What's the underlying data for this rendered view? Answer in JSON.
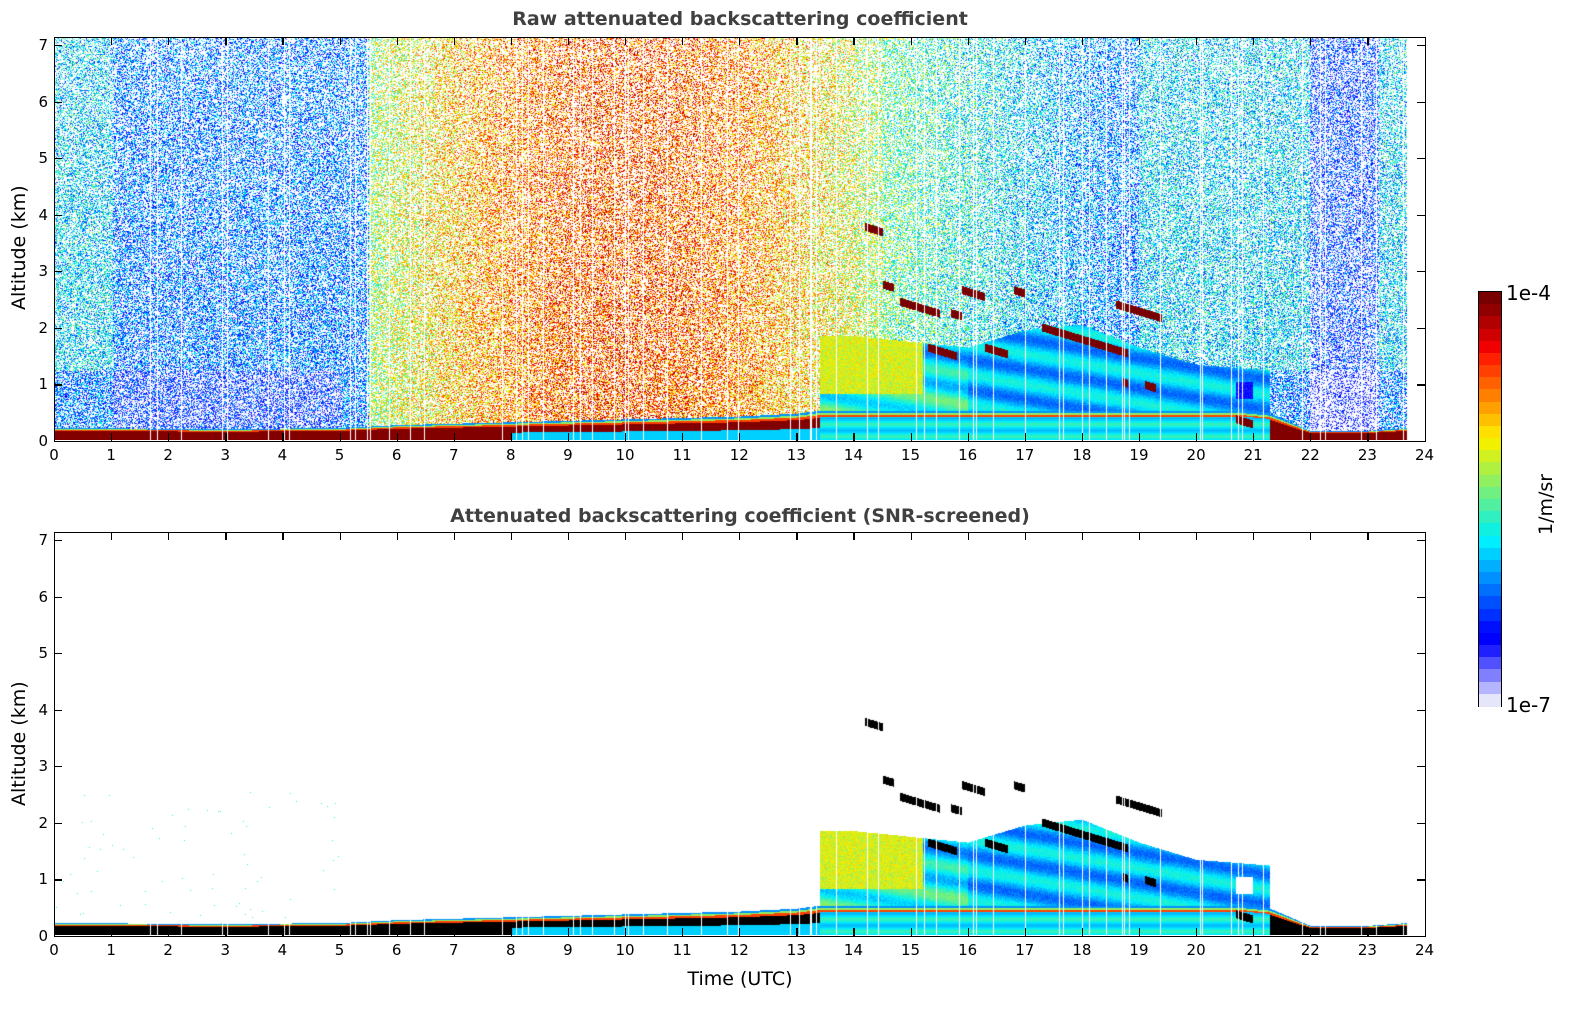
{
  "chart_data": [
    {
      "type": "heatmap",
      "id": "raw",
      "title": "Raw attenuated backscattering coefficient",
      "xlabel": "",
      "ylabel": "Altitude (km)",
      "xlim": [
        0,
        24
      ],
      "ylim": [
        0,
        7
      ],
      "x_ticks": [
        "0",
        "1",
        "2",
        "3",
        "4",
        "5",
        "6",
        "7",
        "8",
        "9",
        "10",
        "11",
        "12",
        "13",
        "14",
        "15",
        "16",
        "17",
        "18",
        "19",
        "20",
        "21",
        "22",
        "23",
        "24"
      ],
      "y_ticks": [
        "0",
        "1",
        "2",
        "3",
        "4",
        "5",
        "6",
        "7"
      ],
      "data_time_range_utc": [
        0,
        23.7
      ],
      "screened": false,
      "features": {
        "boundary_layer_top_km": {
          "x": [
            0,
            3,
            5,
            6,
            8,
            10,
            12,
            13,
            13.4,
            20.8,
            21.3,
            22,
            23,
            23.7
          ],
          "y": [
            0.2,
            0.18,
            0.2,
            0.25,
            0.3,
            0.35,
            0.4,
            0.45,
            0.5,
            0.5,
            0.45,
            0.15,
            0.15,
            0.2
          ]
        },
        "aerosol_layer_top_km": {
          "x": [
            13.4,
            14,
            15,
            16,
            17,
            18,
            19,
            20,
            21.3
          ],
          "y": [
            1.8,
            1.8,
            1.7,
            1.6,
            1.9,
            2.0,
            1.6,
            1.3,
            1.2
          ]
        },
        "cloud_layers": [
          {
            "t0": 14.2,
            "t1": 14.5,
            "alt": 3.7
          },
          {
            "t0": 14.5,
            "t1": 14.7,
            "alt": 2.7
          },
          {
            "t0": 14.8,
            "t1": 15.5,
            "alt": 2.4
          },
          {
            "t0": 15.3,
            "t1": 15.8,
            "alt": 1.6
          },
          {
            "t0": 15.7,
            "t1": 15.9,
            "alt": 2.2
          },
          {
            "t0": 15.9,
            "t1": 16.3,
            "alt": 2.6
          },
          {
            "t0": 16.3,
            "t1": 16.7,
            "alt": 1.6
          },
          {
            "t0": 16.8,
            "t1": 17.0,
            "alt": 2.6
          },
          {
            "t0": 17.3,
            "t1": 18.8,
            "alt": 1.95
          },
          {
            "t0": 18.6,
            "t1": 19.4,
            "alt": 2.35
          },
          {
            "t0": 18.7,
            "t1": 18.8,
            "alt": 1.0
          },
          {
            "t0": 19.1,
            "t1": 19.3,
            "alt": 0.95
          },
          {
            "t0": 20.7,
            "t1": 21.0,
            "alt": 0.35
          }
        ],
        "high_signal_background_period_utc": [
          5.5,
          14.5
        ]
      }
    },
    {
      "type": "heatmap",
      "id": "screened",
      "title": "Attenuated backscattering coefficient (SNR-screened)",
      "xlabel": "Time (UTC)",
      "ylabel": "Altitude (km)",
      "xlim": [
        0,
        24
      ],
      "ylim": [
        0,
        7
      ],
      "x_ticks": [
        "0",
        "1",
        "2",
        "3",
        "4",
        "5",
        "6",
        "7",
        "8",
        "9",
        "10",
        "11",
        "12",
        "13",
        "14",
        "15",
        "16",
        "17",
        "18",
        "19",
        "20",
        "21",
        "22",
        "23",
        "24"
      ],
      "y_ticks": [
        "0",
        "1",
        "2",
        "3",
        "4",
        "5",
        "6",
        "7"
      ],
      "data_time_range_utc": [
        0,
        23.7
      ],
      "screened": true
    }
  ],
  "colorbar": {
    "label": "1/m/sr",
    "max_label": "1e-4",
    "min_label": "1e-7",
    "scale": "log",
    "range": [
      1e-07,
      0.0001
    ],
    "colors": [
      "#e6e6fa",
      "#b4b4ff",
      "#8080ff",
      "#5050ff",
      "#2020ff",
      "#0000ff",
      "#0010ff",
      "#0030ff",
      "#0050ff",
      "#0070ff",
      "#0090ff",
      "#00b0ff",
      "#00d0ff",
      "#00eeff",
      "#10f0e0",
      "#30f0c0",
      "#50f0a0",
      "#70f080",
      "#90f060",
      "#b0f040",
      "#d0f020",
      "#f0f000",
      "#ffe000",
      "#ffc000",
      "#ffa000",
      "#ff8000",
      "#ff6000",
      "#ff4000",
      "#ff2000",
      "#f00000",
      "#d00000",
      "#b00000",
      "#900000",
      "#780000"
    ]
  }
}
